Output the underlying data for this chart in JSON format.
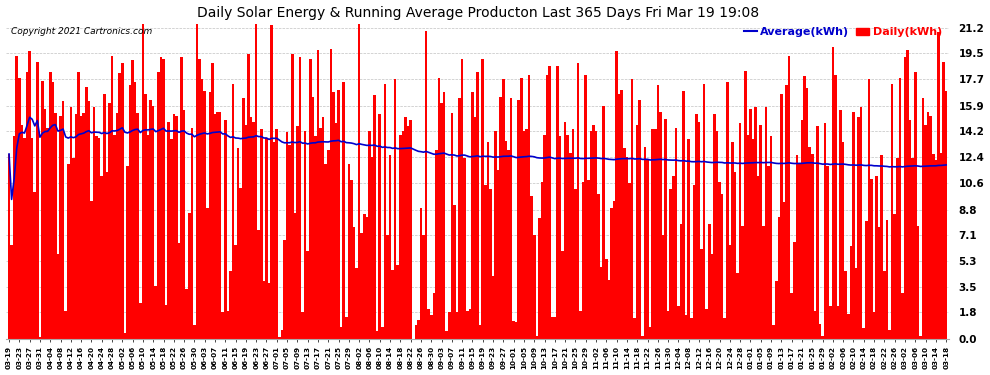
{
  "title": "Daily Solar Energy & Running Average Producton Last 365 Days Fri Mar 19 19:08",
  "copyright": "Copyright 2021 Cartronics.com",
  "legend_avg": "Average(kWh)",
  "legend_daily": "Daily(kWh)",
  "bar_color": "#ff0000",
  "avg_color": "#0000cc",
  "bg_color": "#ffffff",
  "grid_color": "#999999",
  "yticks": [
    0.0,
    1.8,
    3.5,
    5.3,
    7.1,
    8.8,
    10.6,
    12.4,
    14.2,
    15.9,
    17.7,
    19.5,
    21.2
  ],
  "ymax": 21.2,
  "ymin": 0.0,
  "title_color": "#000000",
  "copyright_color": "#000000",
  "legend_avg_color": "#0000cc",
  "legend_daily_color": "#ff0000"
}
